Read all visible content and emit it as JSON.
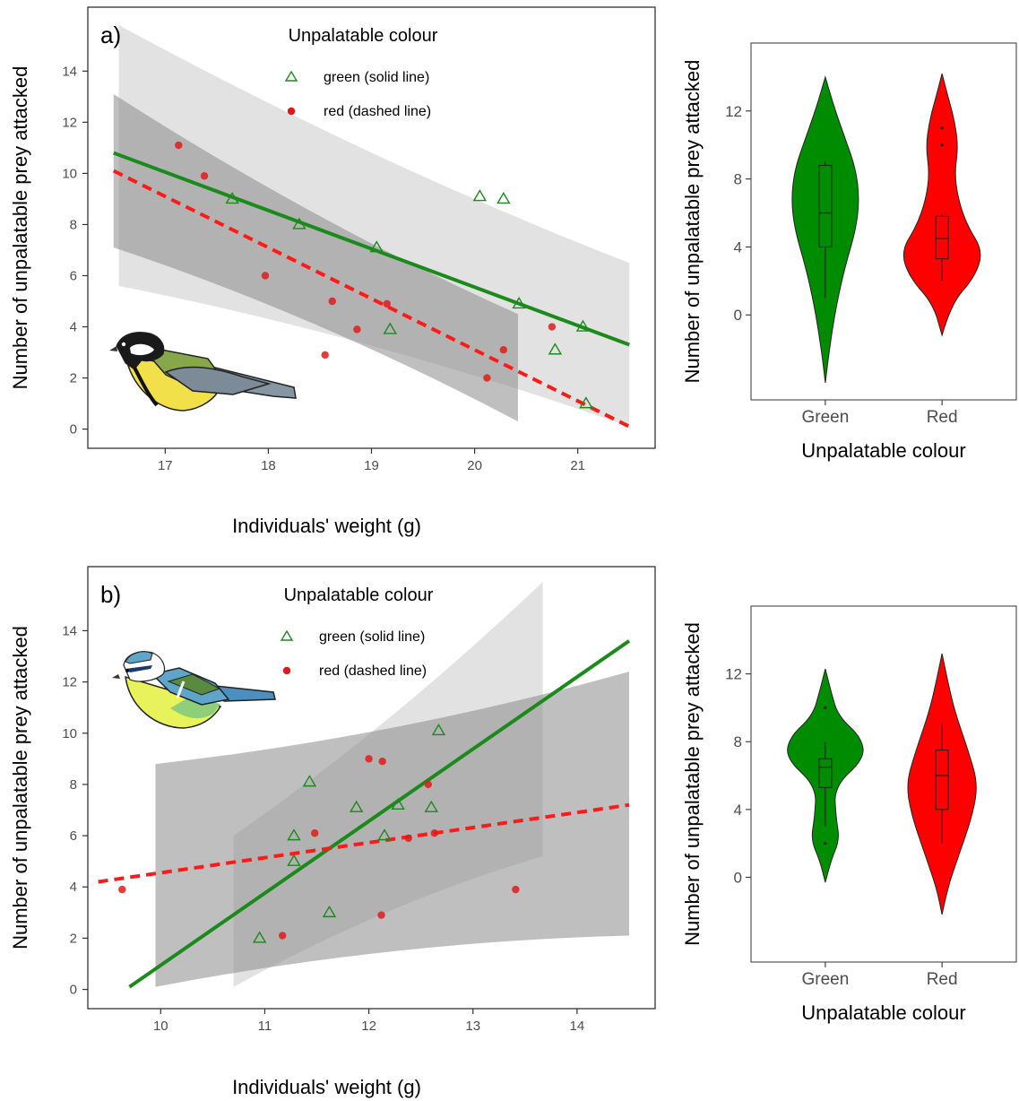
{
  "chart_data": [
    {
      "type": "scatter",
      "panel_label": "a)",
      "xlabel": "Individuals' weight (g)",
      "ylabel": "Number of unpalatable prey attacked",
      "xlim": [
        16.25,
        21.75
      ],
      "ylim": [
        -0.75,
        16.5
      ],
      "x_ticks": [
        17,
        18,
        19,
        20,
        21
      ],
      "y_ticks": [
        0,
        2,
        4,
        6,
        8,
        10,
        12,
        14
      ],
      "grid": false,
      "legend": {
        "title": "Unpalatable colour",
        "position": "top-center",
        "entries": [
          "green (solid line)",
          "red (dashed line)"
        ]
      },
      "series": [
        {
          "name": "green (solid line)",
          "color": "#1a8a1a",
          "marker": "triangle-open",
          "points": [
            [
              17.65,
              9
            ],
            [
              18.3,
              8
            ],
            [
              19.05,
              7.1
            ],
            [
              19.18,
              3.9
            ],
            [
              20.05,
              9.1
            ],
            [
              20.28,
              9
            ],
            [
              20.43,
              4.9
            ],
            [
              20.78,
              3.1
            ],
            [
              21.05,
              4
            ],
            [
              21.08,
              1
            ]
          ],
          "fit": {
            "style": "solid",
            "x": [
              16.5,
              21.5
            ],
            "y": [
              10.8,
              3.3
            ]
          },
          "ci": {
            "x": [
              16.55,
              21.5
            ],
            "lower_start": 5.6,
            "lower_end": 0.1,
            "upper_start": 15.8,
            "upper_end": 6.5
          }
        },
        {
          "name": "red (dashed line)",
          "color": "#ff0000",
          "marker": "circle",
          "points": [
            [
              17.13,
              11.1
            ],
            [
              17.38,
              9.9
            ],
            [
              17.97,
              6
            ],
            [
              18.62,
              5
            ],
            [
              18.86,
              3.9
            ],
            [
              18.55,
              2.9
            ],
            [
              19.15,
              4.9
            ],
            [
              20.12,
              2
            ],
            [
              20.28,
              3.1
            ],
            [
              20.75,
              4
            ]
          ],
          "fit": {
            "style": "dashed",
            "x": [
              16.5,
              21.5
            ],
            "y": [
              10.1,
              0.1
            ]
          },
          "ci": {
            "x": [
              16.5,
              20.42
            ],
            "lower_start": 7.1,
            "lower_end": 0.3,
            "upper_start": 13.1,
            "upper_end": 4.5
          }
        }
      ]
    },
    {
      "type": "violin",
      "xlabel": "Unpalatable colour",
      "ylabel": "Number of unpalatable prey attacked",
      "ylim": [
        -5,
        16
      ],
      "y_ticks": [
        0,
        4,
        8,
        12
      ],
      "categories": [
        "Green",
        "Red"
      ],
      "series": [
        {
          "name": "Green",
          "color": "#008c00",
          "violin_range": [
            -4,
            14
          ],
          "box": {
            "q1": 4,
            "median": 6,
            "q3": 8.8,
            "whisker_low": 1,
            "whisker_high": 9
          },
          "outliers": []
        },
        {
          "name": "Red",
          "color": "#ff0000",
          "violin_range": [
            -1.2,
            14.2
          ],
          "box": {
            "q1": 3.3,
            "median": 4.5,
            "q3": 5.8,
            "whisker_low": 2,
            "whisker_high": 6
          },
          "outliers": [
            10,
            11
          ]
        }
      ]
    },
    {
      "type": "scatter",
      "panel_label": "b)",
      "xlabel": "Individuals' weight (g)",
      "ylabel": "Number of unpalatable prey attacked",
      "xlim": [
        9.3,
        14.75
      ],
      "ylim": [
        -0.75,
        16.5
      ],
      "x_ticks": [
        10,
        11,
        12,
        13,
        14
      ],
      "y_ticks": [
        0,
        2,
        4,
        6,
        8,
        10,
        12,
        14
      ],
      "grid": false,
      "legend": {
        "title": "Unpalatable colour",
        "position": "top-center",
        "entries": [
          "green (solid line)",
          "red (dashed line)"
        ]
      },
      "series": [
        {
          "name": "green (solid line)",
          "color": "#1a8a1a",
          "marker": "triangle-open",
          "points": [
            [
              10.95,
              2
            ],
            [
              11.28,
              6
            ],
            [
              11.28,
              5
            ],
            [
              11.43,
              8.1
            ],
            [
              11.62,
              3
            ],
            [
              11.88,
              7.1
            ],
            [
              12.15,
              6
            ],
            [
              12.28,
              7.2
            ],
            [
              12.6,
              7.1
            ],
            [
              12.67,
              10.1
            ]
          ],
          "fit": {
            "style": "solid",
            "x": [
              9.7,
              14.5
            ],
            "y": [
              0.1,
              13.6
            ]
          },
          "ci": {
            "x": [
              10.7,
              13.67
            ],
            "lower_start": 0.1,
            "lower_end": 5.2,
            "upper_start": 6,
            "upper_end": 15.9
          }
        },
        {
          "name": "red (dashed line)",
          "color": "#ff0000",
          "marker": "circle",
          "points": [
            [
              9.63,
              3.9
            ],
            [
              11.17,
              2.1
            ],
            [
              11.48,
              6.1
            ],
            [
              12.0,
              9
            ],
            [
              12.13,
              8.9
            ],
            [
              12.12,
              2.9
            ],
            [
              12.38,
              5.9
            ],
            [
              12.57,
              8
            ],
            [
              12.63,
              6.1
            ],
            [
              13.41,
              3.9
            ]
          ],
          "fit": {
            "style": "dashed",
            "x": [
              9.4,
              14.5
            ],
            "y": [
              4.2,
              7.2
            ]
          },
          "ci": {
            "x": [
              9.95,
              14.5
            ],
            "lower_start": 0.1,
            "lower_end": 2.1,
            "upper_start": 8.8,
            "upper_end": 12.4
          }
        }
      ]
    },
    {
      "type": "violin",
      "xlabel": "Unpalatable colour",
      "ylabel": "Number of unpalatable prey attacked",
      "ylim": [
        -5,
        16
      ],
      "y_ticks": [
        0,
        4,
        8,
        12
      ],
      "categories": [
        "Green",
        "Red"
      ],
      "series": [
        {
          "name": "Green",
          "color": "#008c00",
          "violin_range": [
            -0.3,
            12.3
          ],
          "box": {
            "q1": 5.3,
            "median": 6.5,
            "q3": 7,
            "whisker_low": 3,
            "whisker_high": 8
          },
          "outliers": [
            2,
            10
          ]
        },
        {
          "name": "Red",
          "color": "#ff0000",
          "violin_range": [
            -2.2,
            13.2
          ],
          "box": {
            "q1": 4,
            "median": 6,
            "q3": 7.5,
            "whisker_low": 2,
            "whisker_high": 9
          },
          "outliers": []
        }
      ]
    }
  ]
}
